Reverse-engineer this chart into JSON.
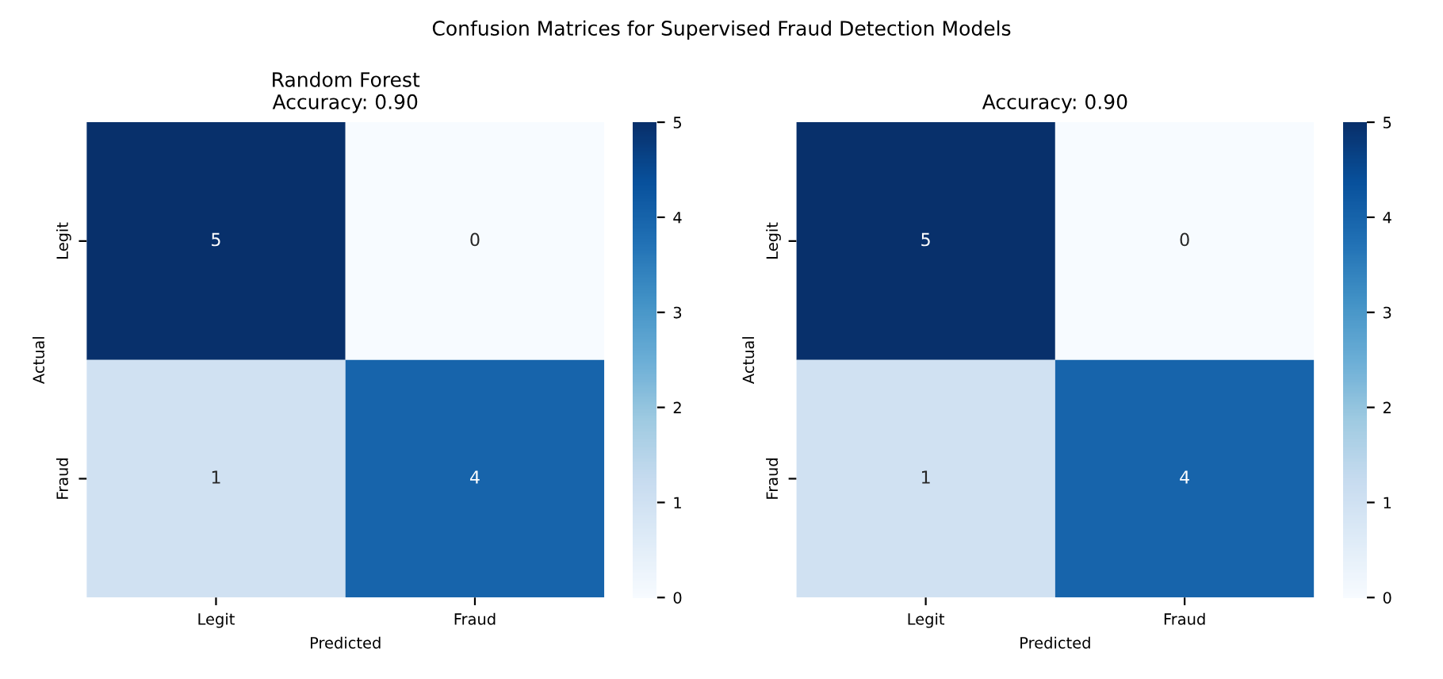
{
  "chart_data": [
    {
      "type": "heatmap",
      "title": "Random Forest\nAccuracy: 0.90",
      "xlabel": "Predicted",
      "ylabel": "Actual",
      "categories": [
        "Legit",
        "Fraud"
      ],
      "y_categories": [
        "Legit",
        "Fraud"
      ],
      "cells": [
        [
          5,
          0
        ],
        [
          1,
          4
        ]
      ],
      "data_labels": true,
      "clim": [
        0,
        5
      ],
      "cticks": [
        0,
        1,
        2,
        3,
        4,
        5
      ],
      "annotations": [
        "Confusion Matrices for Supervised Fraud Detection Models"
      ]
    },
    {
      "type": "heatmap",
      "title": "Accuracy: 0.90",
      "xlabel": "Predicted",
      "ylabel": "Actual",
      "categories": [
        "Legit",
        "Fraud"
      ],
      "y_categories": [
        "Legit",
        "Fraud"
      ],
      "cells": [
        [
          5,
          0
        ],
        [
          1,
          4
        ]
      ],
      "data_labels": true,
      "clim": [
        0,
        5
      ],
      "cticks": [
        0,
        1,
        2,
        3,
        4,
        5
      ]
    }
  ]
}
